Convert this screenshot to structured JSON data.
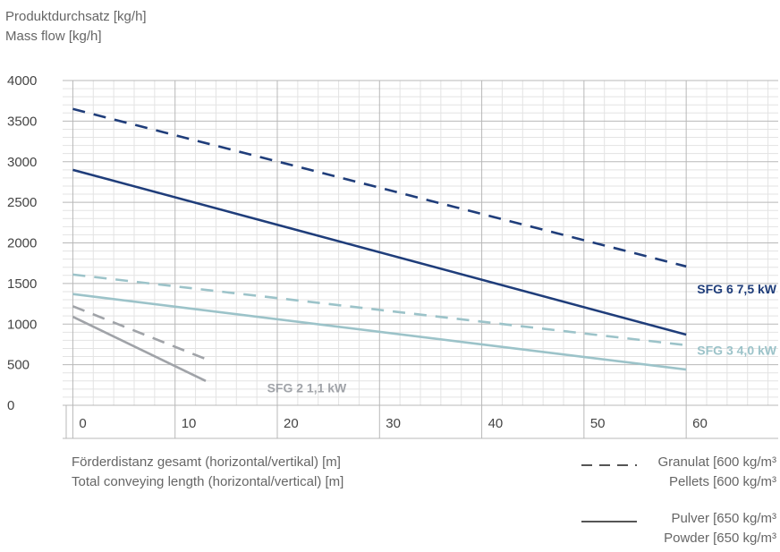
{
  "chart_data": {
    "type": "line",
    "ylabel_de": "Produktdurchsatz [kg/h]",
    "ylabel_en": "Mass flow [kg/h]",
    "xlabel_de": "Förderdistanz gesamt (horizontal/vertikal) [m]",
    "xlabel_en": "Total conveying length (horizontal/vertical) [m]",
    "xlim": [
      -1,
      69
    ],
    "ylim": [
      0,
      4000
    ],
    "x_ticks": [
      0,
      10,
      20,
      30,
      40,
      50,
      60
    ],
    "y_ticks": [
      0,
      500,
      1000,
      1500,
      2000,
      2500,
      3000,
      3500,
      4000
    ],
    "grid": true,
    "series": [
      {
        "group": "SFG 6",
        "style": "dashed",
        "color": "#1f3d7a",
        "x": [
          0,
          60
        ],
        "y": [
          3650,
          1710
        ]
      },
      {
        "group": "SFG 6",
        "style": "solid",
        "color": "#1f3d7a",
        "x": [
          0,
          60
        ],
        "y": [
          2900,
          870
        ]
      },
      {
        "group": "SFG 3",
        "style": "dashed",
        "color": "#9cc3c9",
        "x": [
          0,
          60
        ],
        "y": [
          1610,
          740
        ]
      },
      {
        "group": "SFG 3",
        "style": "solid",
        "color": "#9cc3c9",
        "x": [
          0,
          60
        ],
        "y": [
          1370,
          440
        ]
      },
      {
        "group": "SFG 2",
        "style": "dashed",
        "color": "#a0a3a8",
        "x": [
          0,
          13
        ],
        "y": [
          1220,
          570
        ]
      },
      {
        "group": "SFG 2",
        "style": "solid",
        "color": "#a0a3a8",
        "x": [
          0,
          13
        ],
        "y": [
          1090,
          300
        ]
      }
    ],
    "annotations": [
      {
        "text": "SFG 6  7,5 kW",
        "color": "#1f3d7a",
        "x": 69,
        "y": 1380
      },
      {
        "text": "SFG 3  4,0 kW",
        "color": "#9cc3c9",
        "x": 69,
        "y": 620
      },
      {
        "text": "SFG 2  1,1 kW",
        "color": "#a0a3a8",
        "x": 19,
        "y": 160
      }
    ],
    "legend": [
      {
        "style": "dashed",
        "line1": "Granulat [600 kg/m³",
        "line2": "Pellets [600 kg/m³"
      },
      {
        "style": "solid",
        "line1": "Pulver [650 kg/m³",
        "line2": "Powder [650 kg/m³"
      }
    ]
  }
}
